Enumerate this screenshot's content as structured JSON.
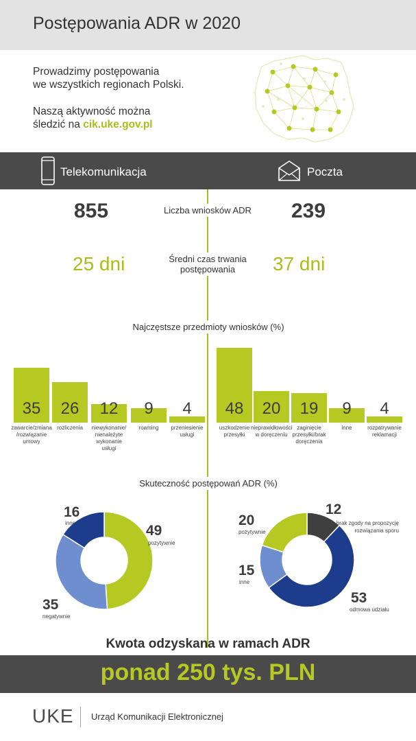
{
  "header": {
    "title": "Postępowania ADR w 2020"
  },
  "intro": {
    "line1": "Prowadzimy postępowania",
    "line2": "we wszystkich regionach Polski.",
    "line3": "Naszą aktywność można",
    "line4_prefix": "śledzić na ",
    "link": "cik.uke.gov.pl"
  },
  "sections": {
    "telecom": "Telekomunikacja",
    "post": "Poczta"
  },
  "stats": {
    "applications_label": "Liczba wniosków ADR",
    "telecom_applications": "855",
    "post_applications": "239",
    "duration_label_1": "Średni czas trwania",
    "duration_label_2": "postępowania",
    "telecom_duration": "25 dni",
    "post_duration": "37 dni"
  },
  "subjects_title": "Najczęstsze przedmioty wniosków (%)",
  "effectiveness_title": "Skuteczność postępowań ADR (%)",
  "amount": {
    "title": "Kwota odzyskana w ramach ADR",
    "value": "ponad 250 tys. PLN"
  },
  "footer": {
    "logo": "UKE",
    "name": "Urząd Komunikacji Elektronicznej"
  },
  "colors": {
    "green": "#b6c822",
    "dark": "#4a4a4a",
    "navy": "#1e3c8c",
    "light_blue": "#6e8ecf",
    "gray": "#3f3f3f"
  },
  "chart_data": [
    {
      "type": "bar",
      "title": "Najczęstsze przedmioty wniosków (%)",
      "series": [
        {
          "name": "Telekomunikacja",
          "values": [
            35,
            26,
            12,
            9,
            4
          ]
        }
      ],
      "categories": [
        [
          "zawarcie/zmiana",
          "/rozwiązanie",
          "umowy"
        ],
        [
          "rozliczenia"
        ],
        [
          "niewykonanie/",
          "nienależyte",
          "wykonanie usługi"
        ],
        [
          "roaming"
        ],
        [
          "przeniesienie",
          "usługi"
        ]
      ]
    },
    {
      "type": "bar",
      "title": "Najczęstsze przedmioty wniosków (%)",
      "series": [
        {
          "name": "Poczta",
          "values": [
            48,
            20,
            19,
            9,
            4
          ]
        }
      ],
      "categories": [
        [
          "uszkodzenie",
          "przesyłki"
        ],
        [
          "nieprawidłowości",
          "w doręczeniu"
        ],
        [
          "zaginięcie",
          "przesyłki/brak",
          "doręczenia"
        ],
        [
          "inne"
        ],
        [
          "rozpatrywanie",
          "reklamacji"
        ]
      ]
    },
    {
      "type": "pie",
      "title": "Skuteczność postępowań ADR (%)",
      "series": [
        {
          "name": "Telekomunikacja",
          "values": [
            49,
            35,
            16
          ],
          "labels": [
            "pozytywnie",
            "negatywnie",
            "inne"
          ],
          "colors": [
            "#b6c822",
            "#6e8ecf",
            "#1e3c8c"
          ]
        }
      ]
    },
    {
      "type": "pie",
      "title": "Skuteczność postępowań ADR (%)",
      "series": [
        {
          "name": "Poczta",
          "values": [
            12,
            53,
            15,
            20
          ],
          "labels": [
            "brak zgody na propozycję rozwiązania sporu",
            "odmowa udziału",
            "inne",
            "pozytywnie"
          ],
          "colors": [
            "#3f3f3f",
            "#1e3c8c",
            "#6e8ecf",
            "#b6c822"
          ]
        }
      ]
    }
  ]
}
